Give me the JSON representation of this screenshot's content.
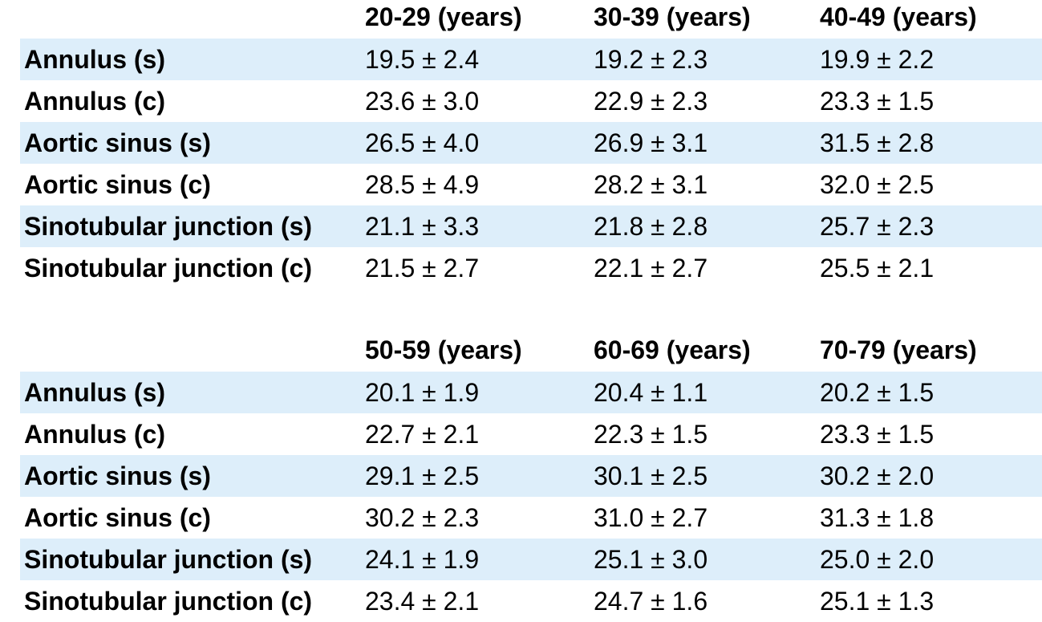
{
  "chart_data": [
    {
      "type": "table",
      "columns": [
        "20-29 (years)",
        "30-39 (years)",
        "40-49 (years)"
      ],
      "rows": [
        {
          "label": "Annulus (s)",
          "values": [
            "19.5 ± 2.4",
            "19.2 ± 2.3",
            "19.9 ± 2.2"
          ]
        },
        {
          "label": "Annulus (c)",
          "values": [
            "23.6 ± 3.0",
            "22.9 ± 2.3",
            "23.3 ± 1.5"
          ]
        },
        {
          "label": "Aortic sinus (s)",
          "values": [
            "26.5 ± 4.0",
            "26.9 ± 3.1",
            "31.5 ± 2.8"
          ]
        },
        {
          "label": "Aortic sinus (c)",
          "values": [
            "28.5 ± 4.9",
            "28.2 ± 3.1",
            "32.0 ± 2.5"
          ]
        },
        {
          "label": "Sinotubular junction (s)",
          "values": [
            "21.1 ± 3.3",
            "21.8 ± 2.8",
            "25.7 ± 2.3"
          ]
        },
        {
          "label": "Sinotubular junction (c)",
          "values": [
            "21.5 ± 2.7",
            "22.1 ± 2.7",
            "25.5 ± 2.1"
          ]
        }
      ]
    },
    {
      "type": "table",
      "columns": [
        "50-59 (years)",
        "60-69 (years)",
        "70-79 (years)"
      ],
      "rows": [
        {
          "label": "Annulus (s)",
          "values": [
            "20.1 ± 1.9",
            "20.4 ± 1.1",
            "20.2 ± 1.5"
          ]
        },
        {
          "label": "Annulus (c)",
          "values": [
            "22.7 ± 2.1",
            "22.3 ± 1.5",
            "23.3 ± 1.5"
          ]
        },
        {
          "label": "Aortic sinus (s)",
          "values": [
            "29.1 ± 2.5",
            "30.1 ± 2.5",
            "30.2 ± 2.0"
          ]
        },
        {
          "label": "Aortic sinus (c)",
          "values": [
            "30.2 ± 2.3",
            "31.0 ± 2.7",
            "31.3 ± 1.8"
          ]
        },
        {
          "label": "Sinotubular junction (s)",
          "values": [
            "24.1 ± 1.9",
            "25.1 ± 3.0",
            "25.0 ± 2.0"
          ]
        },
        {
          "label": "Sinotubular junction (c)",
          "values": [
            "23.4 ± 2.1",
            "24.7 ± 1.6",
            "25.1 ± 1.3"
          ]
        }
      ]
    }
  ],
  "colors": {
    "row_shade": "#ddeefa",
    "text": "#000000"
  }
}
